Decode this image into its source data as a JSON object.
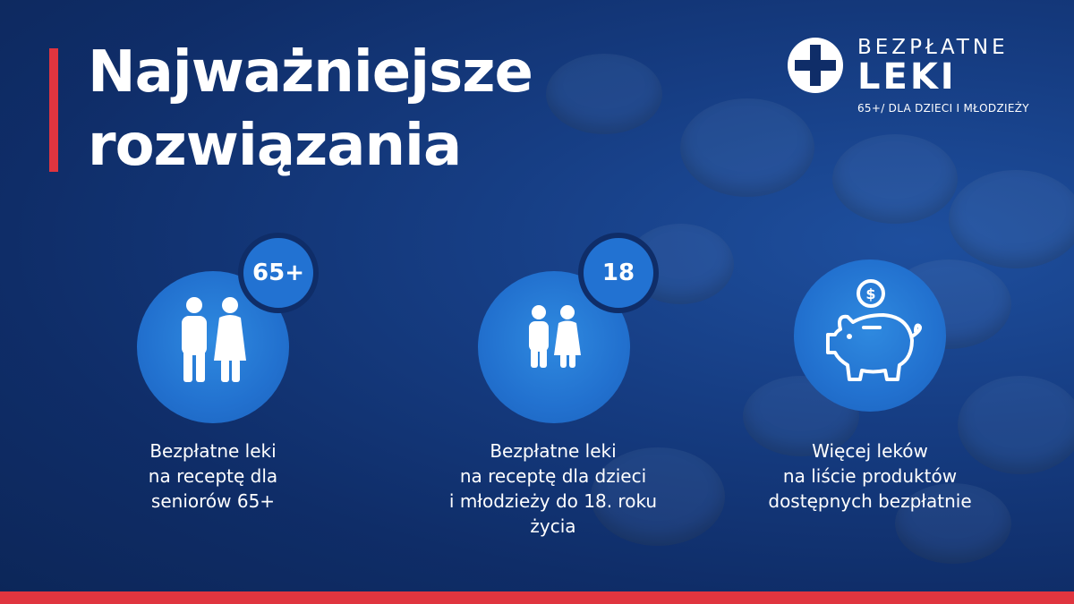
{
  "title": {
    "lines": [
      "Najważniejsze",
      "rozwiązania"
    ]
  },
  "logo": {
    "line1": "BEZPŁATNE",
    "line2": "LEKI",
    "line3": "65+/ DLA DZIECI I MŁODZIEŻY",
    "icon": "medical-cross-icon"
  },
  "items": [
    {
      "badge": "65+",
      "icon": "seniors-couple-icon",
      "caption": [
        "Bezpłatne leki",
        "na receptę dla",
        "seniorów 65+"
      ]
    },
    {
      "badge": "18",
      "icon": "children-icon",
      "caption": [
        "Bezpłatne leki",
        "na receptę dla dzieci",
        "i młodzieży do 18. roku",
        "życia"
      ]
    },
    {
      "icon": "piggy-bank-icon",
      "caption": [
        "Więcej leków",
        "na liście produktów",
        "dostępnych bezpłatnie"
      ]
    }
  ],
  "colors": {
    "background": "#0f2d68",
    "accent_red": "#e0353f",
    "circle_blue": "#2271cf",
    "white": "#ffffff"
  }
}
